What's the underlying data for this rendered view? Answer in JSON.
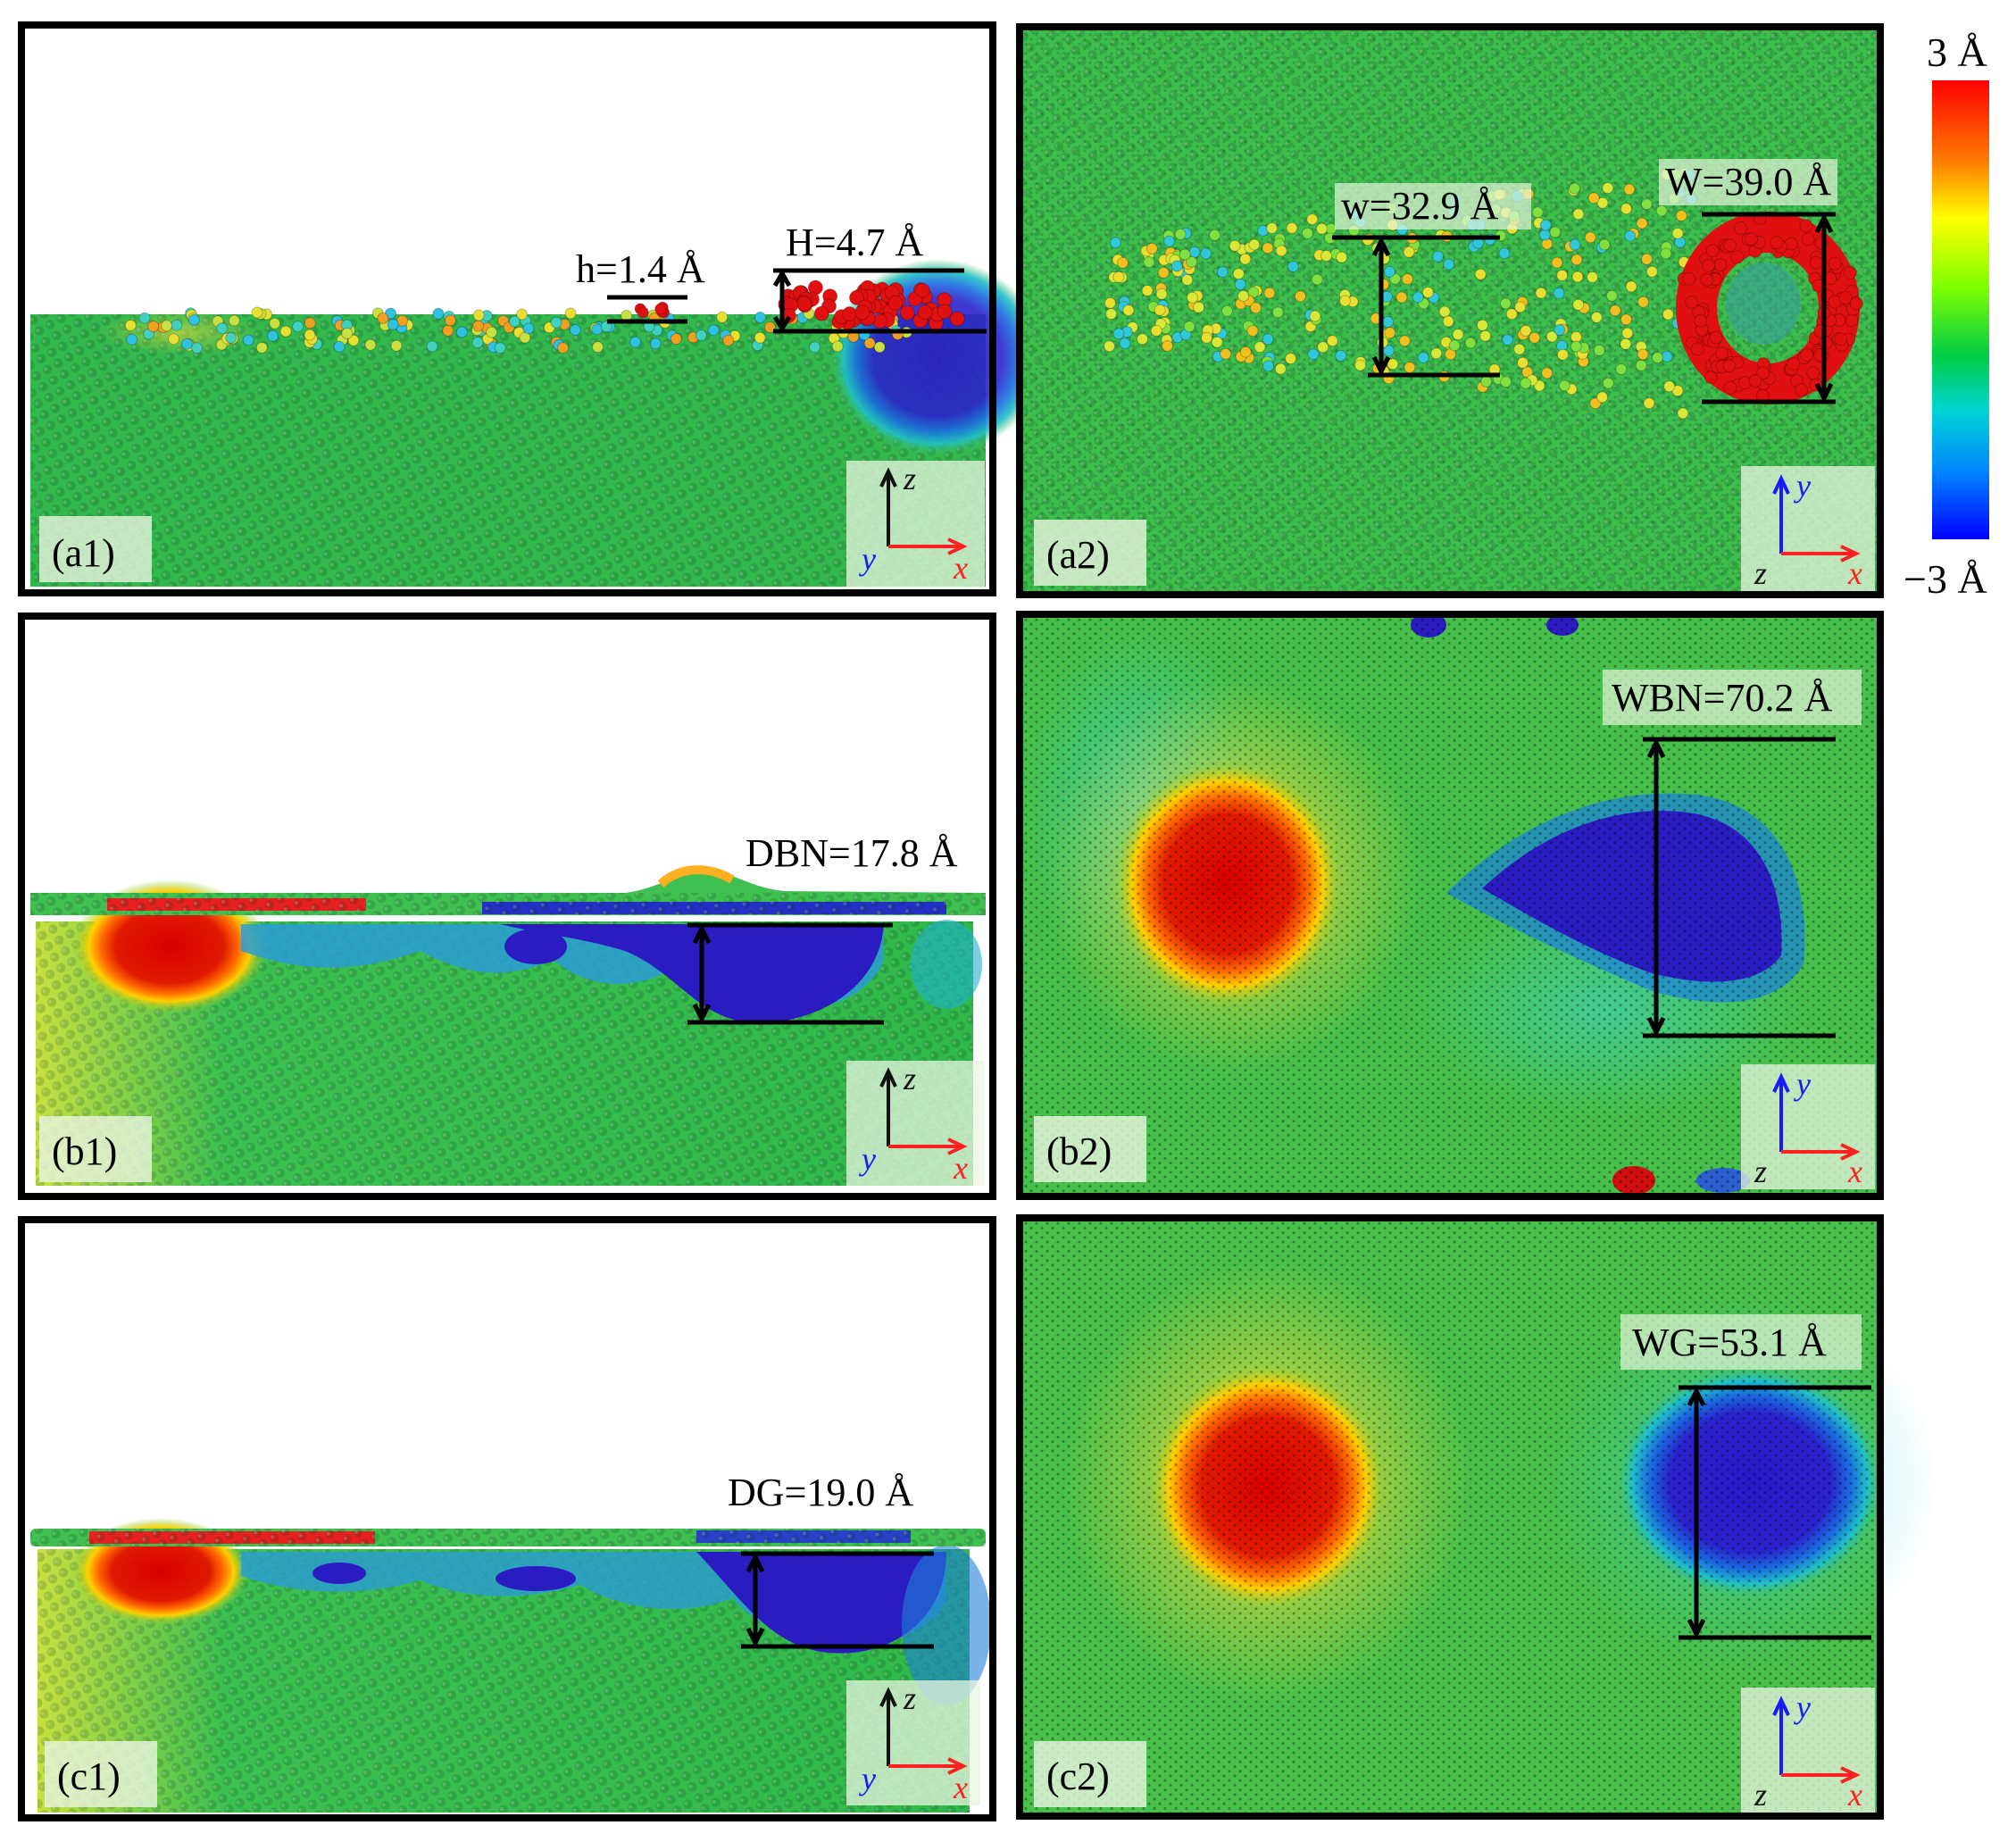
{
  "colorbar": {
    "max_label": "3 Å",
    "min_label": "−3 Å",
    "stops": [
      "#ff0000",
      "#ff7f00",
      "#ffff00",
      "#7fff00",
      "#00cc44",
      "#00d4d4",
      "#0080ff",
      "#0000ff"
    ]
  },
  "colors": {
    "frame": "#000000",
    "substrate_green": "#2fb84a",
    "red": "#e01010",
    "blue": "#2020c8",
    "axis_x": "#ff2020",
    "axis_y": "#1a1aff",
    "axis_z": "#111111"
  },
  "axes_side": {
    "up": "z",
    "right": "x",
    "depth": "y"
  },
  "axes_top": {
    "up": "y",
    "right": "x",
    "depth": "z"
  },
  "panels": {
    "a1": {
      "label": "(a1)",
      "h_label": "h=1.4 Å",
      "H_label": "H=4.7 Å"
    },
    "a2": {
      "label": "(a2)",
      "w_label": "w=32.9 Å",
      "W_label": "W=39.0 Å"
    },
    "b1": {
      "label": "(b1)",
      "D_label": "DBN=17.8 Å"
    },
    "b2": {
      "label": "(b2)",
      "W_label": "WBN=70.2 Å"
    },
    "c1": {
      "label": "(c1)",
      "D_label": "DG=19.0 Å"
    },
    "c2": {
      "label": "(c2)",
      "W_label": "WG=53.1 Å"
    }
  }
}
